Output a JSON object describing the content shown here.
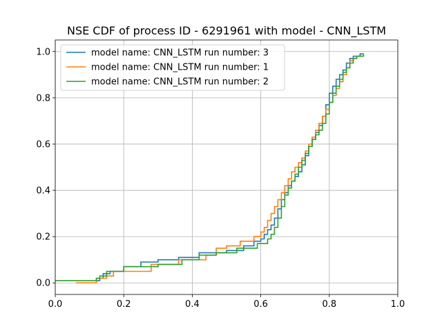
{
  "chart_data": {
    "type": "line",
    "title": "NSE CDF of process ID - 6291961 with model - CNN_LSTM",
    "xlabel": "",
    "ylabel": "",
    "xlim": [
      0.0,
      1.0
    ],
    "ylim": [
      -0.05,
      1.05
    ],
    "xticks": [
      "0.0",
      "0.2",
      "0.4",
      "0.6",
      "0.8",
      "1.0"
    ],
    "yticks": [
      "0.0",
      "0.2",
      "0.4",
      "0.6",
      "0.8",
      "1.0"
    ],
    "grid": true,
    "legend_position": "top-left",
    "series": [
      {
        "name": "model name: CNN_LSTM run number: 3",
        "color": "#1f77b4",
        "x": [
          0.12,
          0.13,
          0.14,
          0.16,
          0.2,
          0.25,
          0.3,
          0.36,
          0.42,
          0.5,
          0.55,
          0.58,
          0.6,
          0.61,
          0.62,
          0.63,
          0.64,
          0.65,
          0.66,
          0.67,
          0.68,
          0.69,
          0.7,
          0.71,
          0.72,
          0.73,
          0.74,
          0.75,
          0.76,
          0.77,
          0.78,
          0.79,
          0.8,
          0.81,
          0.82,
          0.83,
          0.84,
          0.85,
          0.86,
          0.87,
          0.88,
          0.89,
          0.9
        ],
        "y": [
          0.01,
          0.02,
          0.04,
          0.05,
          0.07,
          0.09,
          0.1,
          0.11,
          0.13,
          0.14,
          0.16,
          0.18,
          0.19,
          0.21,
          0.23,
          0.25,
          0.28,
          0.32,
          0.36,
          0.39,
          0.42,
          0.44,
          0.46,
          0.48,
          0.51,
          0.55,
          0.59,
          0.62,
          0.65,
          0.68,
          0.72,
          0.77,
          0.82,
          0.85,
          0.88,
          0.9,
          0.92,
          0.95,
          0.97,
          0.98,
          0.98,
          0.99,
          0.99
        ]
      },
      {
        "name": "model name: CNN_LSTM run number: 1",
        "color": "#ff7f0e",
        "x": [
          0.06,
          0.12,
          0.15,
          0.17,
          0.28,
          0.36,
          0.44,
          0.47,
          0.5,
          0.54,
          0.58,
          0.6,
          0.61,
          0.62,
          0.63,
          0.64,
          0.65,
          0.66,
          0.67,
          0.68,
          0.69,
          0.7,
          0.71,
          0.72,
          0.73,
          0.74,
          0.75,
          0.76,
          0.77,
          0.78,
          0.79,
          0.8,
          0.81,
          0.82,
          0.83,
          0.84,
          0.85,
          0.86,
          0.87,
          0.88,
          0.9
        ],
        "y": [
          0.0,
          0.02,
          0.03,
          0.05,
          0.08,
          0.1,
          0.12,
          0.15,
          0.16,
          0.18,
          0.2,
          0.22,
          0.24,
          0.27,
          0.3,
          0.33,
          0.36,
          0.39,
          0.42,
          0.45,
          0.48,
          0.5,
          0.52,
          0.54,
          0.57,
          0.6,
          0.63,
          0.66,
          0.69,
          0.72,
          0.75,
          0.78,
          0.81,
          0.84,
          0.87,
          0.9,
          0.93,
          0.96,
          0.97,
          0.98,
          0.98
        ]
      },
      {
        "name": "model name: CNN_LSTM run number: 2",
        "color": "#2ca02c",
        "x": [
          0.0,
          0.12,
          0.13,
          0.15,
          0.2,
          0.3,
          0.37,
          0.42,
          0.47,
          0.53,
          0.59,
          0.62,
          0.63,
          0.64,
          0.65,
          0.66,
          0.67,
          0.68,
          0.69,
          0.7,
          0.71,
          0.72,
          0.73,
          0.74,
          0.75,
          0.76,
          0.77,
          0.78,
          0.79,
          0.8,
          0.81,
          0.82,
          0.83,
          0.84,
          0.85,
          0.86,
          0.87,
          0.88,
          0.9
        ],
        "y": [
          0.01,
          0.02,
          0.03,
          0.05,
          0.07,
          0.08,
          0.1,
          0.12,
          0.13,
          0.15,
          0.17,
          0.19,
          0.21,
          0.24,
          0.28,
          0.33,
          0.38,
          0.41,
          0.44,
          0.47,
          0.5,
          0.53,
          0.56,
          0.59,
          0.62,
          0.64,
          0.66,
          0.69,
          0.73,
          0.78,
          0.82,
          0.85,
          0.88,
          0.91,
          0.93,
          0.95,
          0.97,
          0.98,
          0.99
        ]
      }
    ]
  }
}
